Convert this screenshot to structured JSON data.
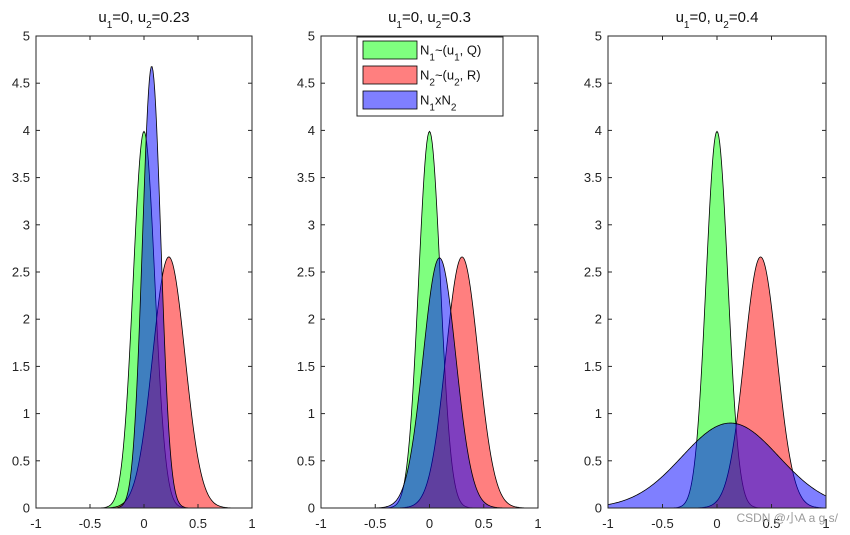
{
  "chart_data": [
    {
      "type": "area",
      "title": "u_1=0,  u_2=0.23",
      "title_parts": [
        "u",
        "1",
        "=0,  u",
        "2",
        "=0.23"
      ],
      "xlim": [
        -1,
        1
      ],
      "ylim": [
        0,
        5
      ],
      "xticks": [
        "-1",
        "-0.5",
        "0",
        "0.5",
        "1"
      ],
      "yticks": [
        "0",
        "0.5",
        "1",
        "1.5",
        "2",
        "2.5",
        "3",
        "3.5",
        "4",
        "4.5",
        "5"
      ],
      "series": [
        {
          "key": "n1",
          "mean": 0,
          "peak": 3.99
        },
        {
          "key": "n2",
          "mean": 0.23,
          "peak": 2.66
        },
        {
          "key": "prod",
          "mean": 0.071,
          "peak": 4.68
        }
      ]
    },
    {
      "type": "area",
      "title": "u_1=0,  u_2=0.3",
      "title_parts": [
        "u",
        "1",
        "=0,  u",
        "2",
        "=0.3"
      ],
      "xlim": [
        -1,
        1
      ],
      "ylim": [
        0,
        5
      ],
      "xticks": [
        "-1",
        "-0.5",
        "0",
        "0.5",
        "1"
      ],
      "yticks": [
        "0",
        "0.5",
        "1",
        "1.5",
        "2",
        "2.5",
        "3",
        "3.5",
        "4",
        "4.5",
        "5"
      ],
      "series": [
        {
          "key": "n1",
          "mean": 0,
          "peak": 3.99
        },
        {
          "key": "n2",
          "mean": 0.3,
          "peak": 2.66
        },
        {
          "key": "prod",
          "mean": 0.092,
          "peak": 2.65
        }
      ]
    },
    {
      "type": "area",
      "title": "u_1=0,  u_2=0.4",
      "title_parts": [
        "u",
        "1",
        "=0,  u",
        "2",
        "=0.4"
      ],
      "xlim": [
        -1,
        1
      ],
      "ylim": [
        0,
        5
      ],
      "xticks": [
        "-1",
        "-0.5",
        "0",
        "0.5",
        "1"
      ],
      "yticks": [
        "0",
        "0.5",
        "1",
        "1.5",
        "2",
        "2.5",
        "3",
        "3.5",
        "4",
        "4.5",
        "5"
      ],
      "series": [
        {
          "key": "n1",
          "mean": 0,
          "peak": 3.99
        },
        {
          "key": "n2",
          "mean": 0.4,
          "peak": 2.66
        },
        {
          "key": "prod",
          "mean": 0.123,
          "peak": 0.9
        }
      ]
    }
  ],
  "legend": {
    "placement": "top",
    "entries": [
      {
        "key": "n1",
        "parts": [
          "N",
          "1",
          "~(u",
          "1",
          ", Q)"
        ],
        "color": "#00ff00"
      },
      {
        "key": "n2",
        "parts": [
          "N",
          "2",
          "~(u",
          "2",
          ", R)"
        ],
        "color": "#ff0000"
      },
      {
        "key": "prod",
        "parts": [
          "N",
          "1",
          "xN",
          "2",
          ""
        ],
        "color": "#0000ff"
      }
    ]
  },
  "series_style": {
    "n1": {
      "color": "#00ff00",
      "alpha": 0.5
    },
    "n2": {
      "color": "#ff0000",
      "alpha": 0.5
    },
    "prod": {
      "color": "#0000ff",
      "alpha": 0.5
    }
  },
  "watermark": "CSDN @小A a g s/"
}
